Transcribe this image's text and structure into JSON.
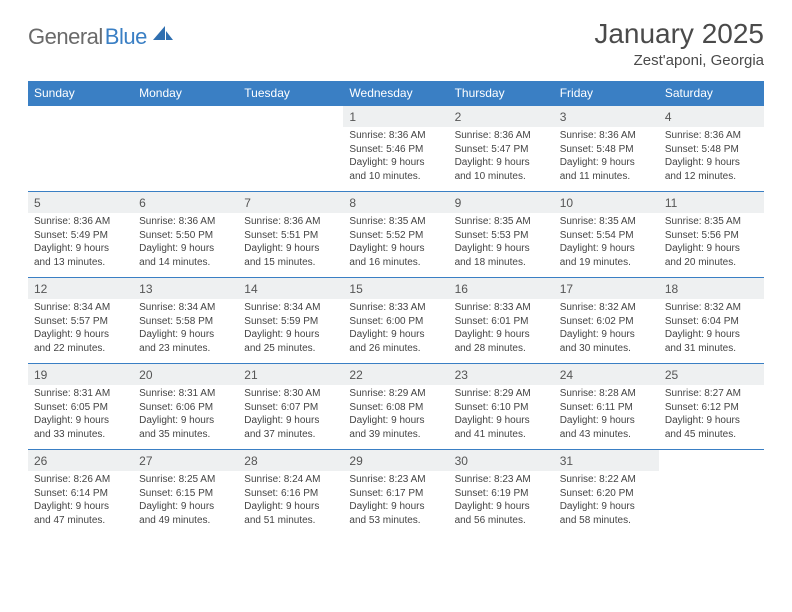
{
  "logo": {
    "text1": "General",
    "text2": "Blue",
    "icon_color": "#2f6fb0"
  },
  "title": "January 2025",
  "location": "Zest'aponi, Georgia",
  "colors": {
    "header_bg": "#3a7fc4",
    "daynum_bg": "#eef0f1",
    "border": "#3a7fc4",
    "text": "#444"
  },
  "day_headers": [
    "Sunday",
    "Monday",
    "Tuesday",
    "Wednesday",
    "Thursday",
    "Friday",
    "Saturday"
  ],
  "weeks": [
    [
      {
        "n": "",
        "lines": []
      },
      {
        "n": "",
        "lines": []
      },
      {
        "n": "",
        "lines": []
      },
      {
        "n": "1",
        "lines": [
          "Sunrise: 8:36 AM",
          "Sunset: 5:46 PM",
          "Daylight: 9 hours",
          "and 10 minutes."
        ]
      },
      {
        "n": "2",
        "lines": [
          "Sunrise: 8:36 AM",
          "Sunset: 5:47 PM",
          "Daylight: 9 hours",
          "and 10 minutes."
        ]
      },
      {
        "n": "3",
        "lines": [
          "Sunrise: 8:36 AM",
          "Sunset: 5:48 PM",
          "Daylight: 9 hours",
          "and 11 minutes."
        ]
      },
      {
        "n": "4",
        "lines": [
          "Sunrise: 8:36 AM",
          "Sunset: 5:48 PM",
          "Daylight: 9 hours",
          "and 12 minutes."
        ]
      }
    ],
    [
      {
        "n": "5",
        "lines": [
          "Sunrise: 8:36 AM",
          "Sunset: 5:49 PM",
          "Daylight: 9 hours",
          "and 13 minutes."
        ]
      },
      {
        "n": "6",
        "lines": [
          "Sunrise: 8:36 AM",
          "Sunset: 5:50 PM",
          "Daylight: 9 hours",
          "and 14 minutes."
        ]
      },
      {
        "n": "7",
        "lines": [
          "Sunrise: 8:36 AM",
          "Sunset: 5:51 PM",
          "Daylight: 9 hours",
          "and 15 minutes."
        ]
      },
      {
        "n": "8",
        "lines": [
          "Sunrise: 8:35 AM",
          "Sunset: 5:52 PM",
          "Daylight: 9 hours",
          "and 16 minutes."
        ]
      },
      {
        "n": "9",
        "lines": [
          "Sunrise: 8:35 AM",
          "Sunset: 5:53 PM",
          "Daylight: 9 hours",
          "and 18 minutes."
        ]
      },
      {
        "n": "10",
        "lines": [
          "Sunrise: 8:35 AM",
          "Sunset: 5:54 PM",
          "Daylight: 9 hours",
          "and 19 minutes."
        ]
      },
      {
        "n": "11",
        "lines": [
          "Sunrise: 8:35 AM",
          "Sunset: 5:56 PM",
          "Daylight: 9 hours",
          "and 20 minutes."
        ]
      }
    ],
    [
      {
        "n": "12",
        "lines": [
          "Sunrise: 8:34 AM",
          "Sunset: 5:57 PM",
          "Daylight: 9 hours",
          "and 22 minutes."
        ]
      },
      {
        "n": "13",
        "lines": [
          "Sunrise: 8:34 AM",
          "Sunset: 5:58 PM",
          "Daylight: 9 hours",
          "and 23 minutes."
        ]
      },
      {
        "n": "14",
        "lines": [
          "Sunrise: 8:34 AM",
          "Sunset: 5:59 PM",
          "Daylight: 9 hours",
          "and 25 minutes."
        ]
      },
      {
        "n": "15",
        "lines": [
          "Sunrise: 8:33 AM",
          "Sunset: 6:00 PM",
          "Daylight: 9 hours",
          "and 26 minutes."
        ]
      },
      {
        "n": "16",
        "lines": [
          "Sunrise: 8:33 AM",
          "Sunset: 6:01 PM",
          "Daylight: 9 hours",
          "and 28 minutes."
        ]
      },
      {
        "n": "17",
        "lines": [
          "Sunrise: 8:32 AM",
          "Sunset: 6:02 PM",
          "Daylight: 9 hours",
          "and 30 minutes."
        ]
      },
      {
        "n": "18",
        "lines": [
          "Sunrise: 8:32 AM",
          "Sunset: 6:04 PM",
          "Daylight: 9 hours",
          "and 31 minutes."
        ]
      }
    ],
    [
      {
        "n": "19",
        "lines": [
          "Sunrise: 8:31 AM",
          "Sunset: 6:05 PM",
          "Daylight: 9 hours",
          "and 33 minutes."
        ]
      },
      {
        "n": "20",
        "lines": [
          "Sunrise: 8:31 AM",
          "Sunset: 6:06 PM",
          "Daylight: 9 hours",
          "and 35 minutes."
        ]
      },
      {
        "n": "21",
        "lines": [
          "Sunrise: 8:30 AM",
          "Sunset: 6:07 PM",
          "Daylight: 9 hours",
          "and 37 minutes."
        ]
      },
      {
        "n": "22",
        "lines": [
          "Sunrise: 8:29 AM",
          "Sunset: 6:08 PM",
          "Daylight: 9 hours",
          "and 39 minutes."
        ]
      },
      {
        "n": "23",
        "lines": [
          "Sunrise: 8:29 AM",
          "Sunset: 6:10 PM",
          "Daylight: 9 hours",
          "and 41 minutes."
        ]
      },
      {
        "n": "24",
        "lines": [
          "Sunrise: 8:28 AM",
          "Sunset: 6:11 PM",
          "Daylight: 9 hours",
          "and 43 minutes."
        ]
      },
      {
        "n": "25",
        "lines": [
          "Sunrise: 8:27 AM",
          "Sunset: 6:12 PM",
          "Daylight: 9 hours",
          "and 45 minutes."
        ]
      }
    ],
    [
      {
        "n": "26",
        "lines": [
          "Sunrise: 8:26 AM",
          "Sunset: 6:14 PM",
          "Daylight: 9 hours",
          "and 47 minutes."
        ]
      },
      {
        "n": "27",
        "lines": [
          "Sunrise: 8:25 AM",
          "Sunset: 6:15 PM",
          "Daylight: 9 hours",
          "and 49 minutes."
        ]
      },
      {
        "n": "28",
        "lines": [
          "Sunrise: 8:24 AM",
          "Sunset: 6:16 PM",
          "Daylight: 9 hours",
          "and 51 minutes."
        ]
      },
      {
        "n": "29",
        "lines": [
          "Sunrise: 8:23 AM",
          "Sunset: 6:17 PM",
          "Daylight: 9 hours",
          "and 53 minutes."
        ]
      },
      {
        "n": "30",
        "lines": [
          "Sunrise: 8:23 AM",
          "Sunset: 6:19 PM",
          "Daylight: 9 hours",
          "and 56 minutes."
        ]
      },
      {
        "n": "31",
        "lines": [
          "Sunrise: 8:22 AM",
          "Sunset: 6:20 PM",
          "Daylight: 9 hours",
          "and 58 minutes."
        ]
      },
      {
        "n": "",
        "lines": []
      }
    ]
  ]
}
